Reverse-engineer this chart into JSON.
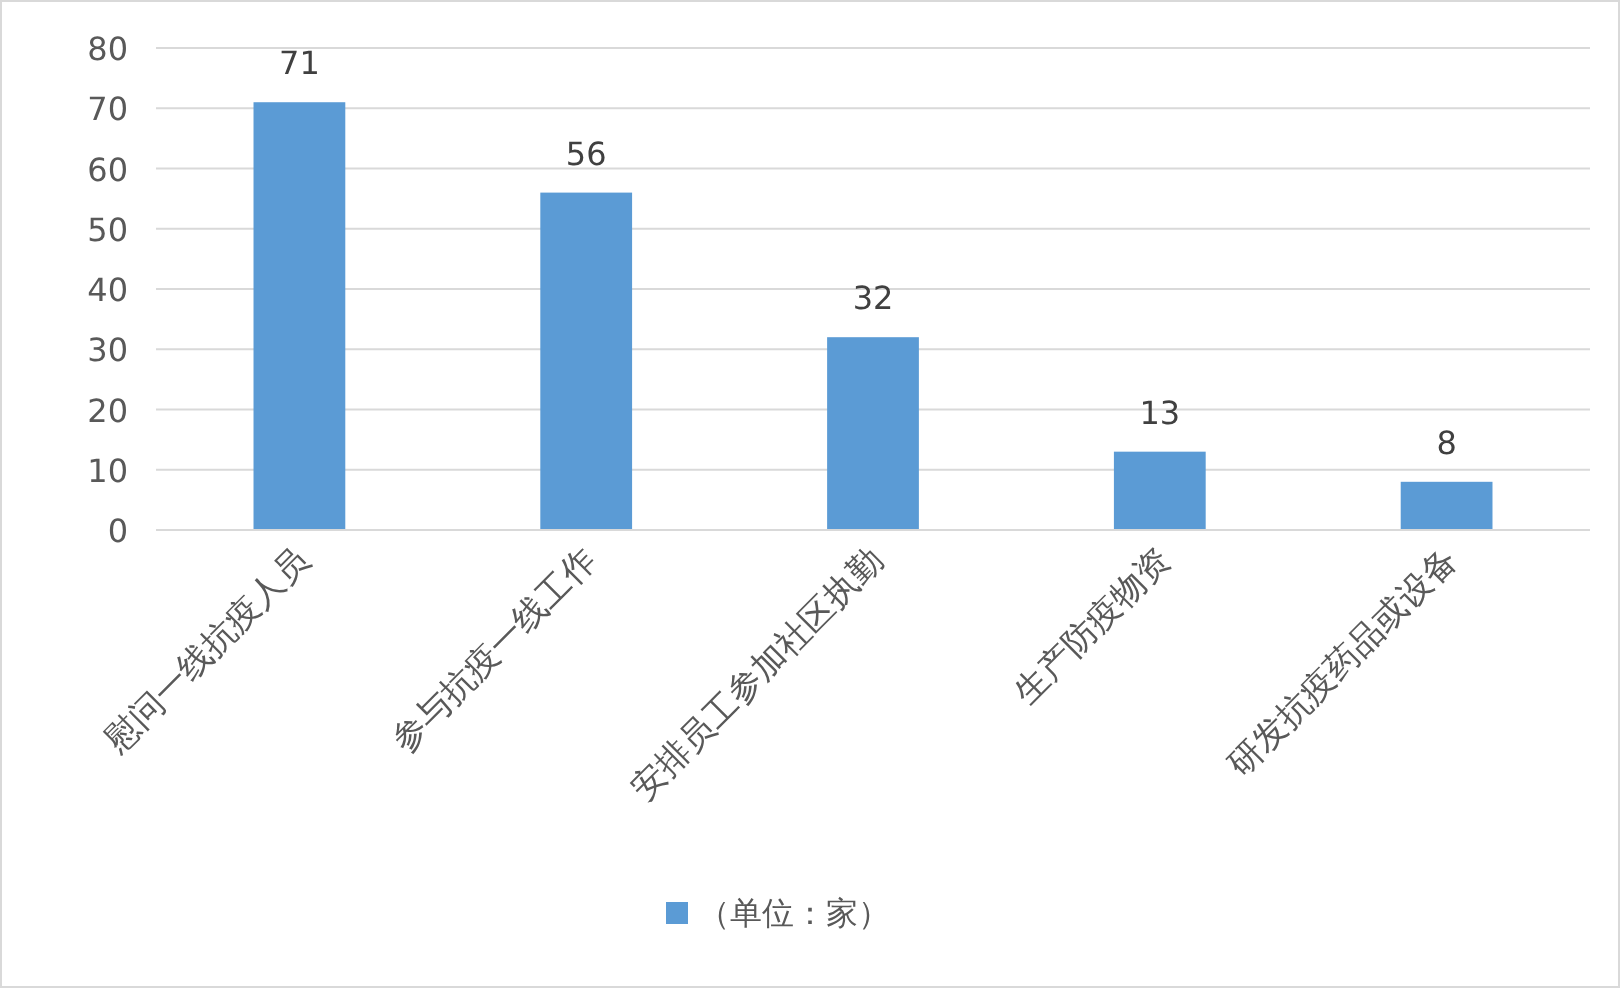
{
  "chart_data": {
    "type": "bar",
    "categories": [
      "慰问一线抗疫人员",
      "参与抗疫一线工作",
      "安排员工参加社区执勤",
      "生产防疫物资",
      "研发抗疫药品或设备"
    ],
    "series": [
      {
        "name": "（单位：家）",
        "color": "#5b9bd5",
        "values": [
          71,
          56,
          32,
          13,
          8
        ]
      }
    ],
    "ylim": [
      0,
      80
    ],
    "yticks": [
      0,
      10,
      20,
      30,
      40,
      50,
      60,
      70,
      80
    ],
    "grid": "y",
    "data_labels": true,
    "legend": "bottom"
  }
}
